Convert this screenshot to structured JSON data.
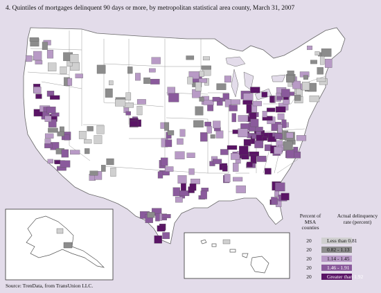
{
  "title": "4.  Quintiles of mortgages delinquent 90 days or more, by metropolitan statistical area county, March 31, 2007",
  "legend": {
    "header_percent": "Percent of MSA counties",
    "header_rate": "Actual delinquency rate (percent)",
    "items": [
      {
        "percent": "20",
        "label": "Less than 0.81",
        "color": "#d0d0d0"
      },
      {
        "percent": "20",
        "label": "0.82 - 1.13",
        "color": "#8c8c8c"
      },
      {
        "percent": "20",
        "label": "1.14 - 1.45",
        "color": "#b89ac6"
      },
      {
        "percent": "20",
        "label": "1.46 - 1.91",
        "color": "#8a5a9c"
      },
      {
        "percent": "20",
        "label": "Greater than 1.92",
        "color": "#5a1466"
      }
    ]
  },
  "source": "Source: TrenData, from TransUnion LLC.",
  "colors": {
    "background": "#e3dcea",
    "land": "#ffffff",
    "state_border": "#9a9a9a",
    "frame": "#333333"
  }
}
